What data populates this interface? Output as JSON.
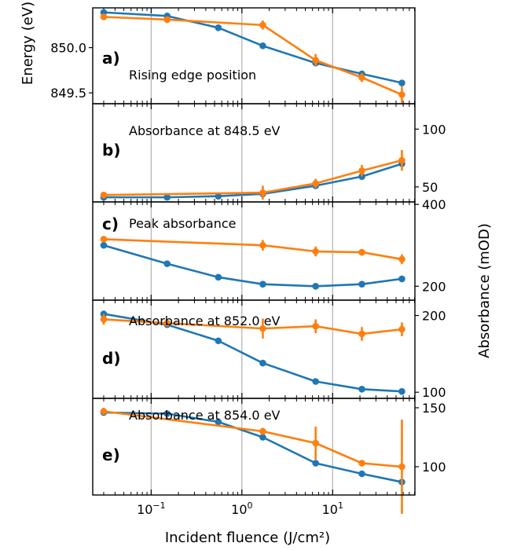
{
  "figure": {
    "xlabel": "Incident fluence (J/cm²)",
    "ylabel_left": "Energy (eV)",
    "ylabel_right": "Absorbance (mOD)",
    "x_scale": "log",
    "x_tick_labels": [
      {
        "value": 0.1,
        "base": "10",
        "exp": "−1"
      },
      {
        "value": 1,
        "base": "10",
        "exp": "0"
      },
      {
        "value": 10,
        "base": "10",
        "exp": "1"
      }
    ],
    "vertical_gridlines_at": [
      0.1,
      1,
      10
    ],
    "colors": {
      "blue": "#1f77b4",
      "orange": "#ff7f0e",
      "grid": "#b0b0b0"
    }
  },
  "chart_data": [
    {
      "type": "line",
      "panel_label": "a)",
      "title": "Rising edge position",
      "y_axis_side": "left",
      "ylim": [
        849.38,
        850.44
      ],
      "y_ticks": [
        849.5,
        850.0
      ],
      "y_tick_labels": [
        "849.5",
        "850.0"
      ],
      "x": [
        0.03,
        0.15,
        0.55,
        1.7,
        6.5,
        21,
        58
      ],
      "series": [
        {
          "color": "#1f77b4",
          "x": [
            0.03,
            0.15,
            0.55,
            1.7,
            6.5,
            21,
            58
          ],
          "values": [
            850.39,
            850.35,
            850.22,
            850.02,
            849.83,
            849.71,
            849.61
          ],
          "errors": [
            0,
            0,
            0,
            0,
            0,
            0,
            0
          ]
        },
        {
          "color": "#ff7f0e",
          "x": [
            0.03,
            0.15,
            1.7,
            6.5,
            21,
            58
          ],
          "values": [
            850.34,
            850.31,
            850.25,
            849.86,
            849.67,
            849.48
          ],
          "errors": [
            0.02,
            0,
            0.05,
            0.07,
            0.05,
            0.09
          ]
        }
      ]
    },
    {
      "type": "line",
      "panel_label": "b)",
      "title": "Absorbance at 848.5 eV",
      "y_axis_side": "right",
      "ylim": [
        37,
        122
      ],
      "y_ticks": [
        50,
        100
      ],
      "y_tick_labels": [
        "50",
        "100"
      ],
      "x": [
        0.03,
        0.15,
        0.55,
        1.7,
        6.5,
        21,
        58
      ],
      "series": [
        {
          "color": "#1f77b4",
          "x": [
            0.03,
            0.15,
            0.55,
            1.7,
            6.5,
            21,
            58
          ],
          "values": [
            41,
            41,
            42,
            44,
            51,
            59,
            70
          ],
          "errors": [
            0,
            0,
            0,
            0,
            0,
            0,
            0
          ]
        },
        {
          "color": "#ff7f0e",
          "x": [
            0.03,
            1.7,
            6.5,
            21,
            58
          ],
          "values": [
            43,
            45,
            53,
            64,
            73
          ],
          "errors": [
            1,
            6,
            4,
            5,
            9
          ]
        }
      ]
    },
    {
      "type": "line",
      "panel_label": "c)",
      "title": "Peak absorbance",
      "y_axis_side": "right",
      "ylim": [
        166,
        406
      ],
      "y_ticks": [
        200,
        400
      ],
      "y_tick_labels": [
        "200",
        "400"
      ],
      "x": [
        0.03,
        0.15,
        0.55,
        1.7,
        6.5,
        21,
        58
      ],
      "series": [
        {
          "color": "#1f77b4",
          "x": [
            0.03,
            0.15,
            0.55,
            1.7,
            6.5,
            21,
            58
          ],
          "values": [
            300,
            255,
            222,
            205,
            200,
            205,
            218
          ],
          "errors": [
            0,
            0,
            0,
            0,
            0,
            0,
            0
          ]
        },
        {
          "color": "#ff7f0e",
          "x": [
            0.03,
            1.7,
            6.5,
            21,
            58
          ],
          "values": [
            315,
            300,
            285,
            283,
            266
          ],
          "errors": [
            3,
            13,
            12,
            8,
            12
          ]
        }
      ]
    },
    {
      "type": "line",
      "panel_label": "d)",
      "title": "Absorbance at 852.0 eV",
      "y_axis_side": "right",
      "ylim": [
        92,
        220
      ],
      "y_ticks": [
        100,
        200
      ],
      "y_tick_labels": [
        "100",
        "200"
      ],
      "x": [
        0.03,
        0.15,
        0.55,
        1.7,
        6.5,
        21,
        58
      ],
      "series": [
        {
          "color": "#1f77b4",
          "x": [
            0.03,
            0.15,
            0.55,
            1.7,
            6.5,
            21,
            58
          ],
          "values": [
            202,
            188,
            167,
            138,
            114,
            104,
            101
          ],
          "errors": [
            0,
            0,
            0,
            0,
            0,
            0,
            0
          ]
        },
        {
          "color": "#ff7f0e",
          "x": [
            0.03,
            0.15,
            1.7,
            6.5,
            21,
            58
          ],
          "values": [
            195,
            190,
            183,
            186,
            176,
            182
          ],
          "errors": [
            7,
            0,
            13,
            9,
            9,
            9
          ]
        }
      ]
    },
    {
      "type": "line",
      "panel_label": "e)",
      "title": "Absorbance at 854.0 eV",
      "y_axis_side": "right",
      "ylim": [
        76,
        158
      ],
      "y_ticks": [
        100,
        150
      ],
      "y_tick_labels": [
        "100",
        "150"
      ],
      "x": [
        0.03,
        0.15,
        0.55,
        1.7,
        6.5,
        21,
        58
      ],
      "series": [
        {
          "color": "#1f77b4",
          "x": [
            0.03,
            0.15,
            0.55,
            1.7,
            6.5,
            21,
            58
          ],
          "values": [
            146,
            145,
            138,
            125,
            103,
            94,
            87
          ],
          "errors": [
            0,
            0,
            0,
            0,
            0,
            0,
            0
          ]
        },
        {
          "color": "#ff7f0e",
          "x": [
            0.03,
            1.7,
            6.5,
            21,
            58
          ],
          "values": [
            147,
            130,
            120,
            103,
            100
          ],
          "errors": [
            3,
            3,
            14,
            2,
            40
          ]
        }
      ]
    }
  ]
}
